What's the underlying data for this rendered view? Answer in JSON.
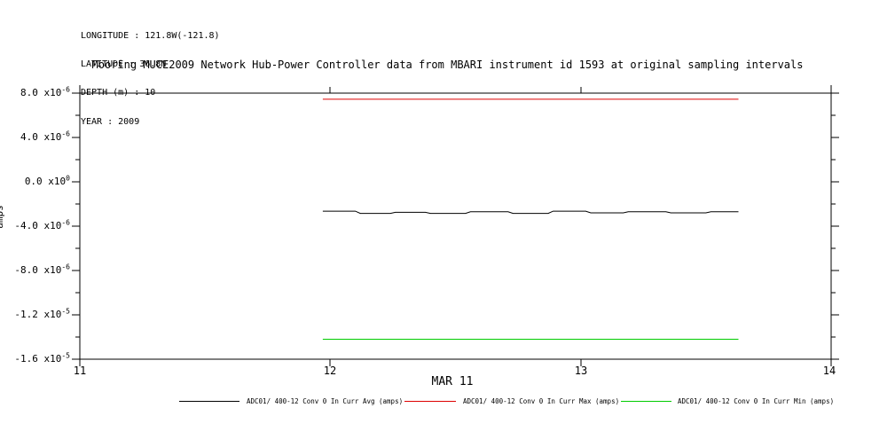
{
  "meta": {
    "longitude": "LONGITUDE : 121.8W(-121.8)",
    "latitude": "LATITUDE : 36.8N",
    "depth": "DEPTH (m) : 10",
    "year": "YEAR : 2009"
  },
  "title": "Mooring MUCE2009 Network Hub-Power Controller data from MBARI instrument id 1593 at original sampling intervals",
  "y_axis": {
    "label": "amps",
    "ticks": [
      {
        "m": "8.0 x10",
        "e": "-6"
      },
      {
        "m": "4.0 x10",
        "e": "-6"
      },
      {
        "m": "0.0 x10",
        "e": "0"
      },
      {
        "m": "-4.0 x10",
        "e": "-6"
      },
      {
        "m": "-8.0 x10",
        "e": "-6"
      },
      {
        "m": "-1.2 x10",
        "e": "-5"
      },
      {
        "m": "-1.6 x10",
        "e": "-5"
      }
    ]
  },
  "x_axis": {
    "ticks": [
      "11",
      "12",
      "13",
      "14"
    ],
    "label": "MAR 11"
  },
  "legend": [
    {
      "label": "ADC01/ 400-12 Conv 0 In Curr Avg (amps)",
      "color": "#000000"
    },
    {
      "label": "ADC01/ 400-12 Conv 0 In Curr Max (amps)",
      "color": "#dd0000"
    },
    {
      "label": "ADC01/ 400-12 Conv 0 In Curr Min (amps)",
      "color": "#00cc00"
    }
  ],
  "chart_data": {
    "type": "line",
    "title": "Mooring MUCE2009 Network Hub-Power Controller data from MBARI instrument id 1593 at original sampling intervals",
    "xlabel": "MAR 11",
    "ylabel": "amps",
    "xlim": [
      11,
      14
    ],
    "ylim": [
      -1.6e-05,
      8e-06
    ],
    "x_ticks": [
      11,
      12,
      13,
      14
    ],
    "y_ticks": [
      8e-06,
      4e-06,
      0,
      -4e-06,
      -8e-06,
      -1.2e-05,
      -1.6e-05
    ],
    "grid": false,
    "legend_position": "bottom",
    "series": [
      {
        "name": "ADC01/ 400-12 Conv 0 In Curr Avg (amps)",
        "color": "#000000",
        "points": [
          [
            11.97,
            -2.65e-06
          ],
          [
            12.1,
            -2.65e-06
          ],
          [
            12.12,
            -2.85e-06
          ],
          [
            12.24,
            -2.85e-06
          ],
          [
            12.26,
            -2.75e-06
          ],
          [
            12.38,
            -2.75e-06
          ],
          [
            12.4,
            -2.85e-06
          ],
          [
            12.54,
            -2.85e-06
          ],
          [
            12.56,
            -2.7e-06
          ],
          [
            12.71,
            -2.7e-06
          ],
          [
            12.73,
            -2.85e-06
          ],
          [
            12.87,
            -2.85e-06
          ],
          [
            12.89,
            -2.65e-06
          ],
          [
            13.02,
            -2.65e-06
          ],
          [
            13.04,
            -2.8e-06
          ],
          [
            13.17,
            -2.8e-06
          ],
          [
            13.19,
            -2.7e-06
          ],
          [
            13.34,
            -2.7e-06
          ],
          [
            13.36,
            -2.8e-06
          ],
          [
            13.5,
            -2.8e-06
          ],
          [
            13.52,
            -2.7e-06
          ],
          [
            13.63,
            -2.7e-06
          ]
        ]
      },
      {
        "name": "ADC01/ 400-12 Conv 0 In Curr Max (amps)",
        "color": "#dd0000",
        "points": [
          [
            11.97,
            7.45e-06
          ],
          [
            13.63,
            7.45e-06
          ]
        ]
      },
      {
        "name": "ADC01/ 400-12 Conv 0 In Curr Min (amps)",
        "color": "#00cc00",
        "points": [
          [
            11.97,
            -1.42e-05
          ],
          [
            13.63,
            -1.42e-05
          ]
        ]
      }
    ]
  }
}
